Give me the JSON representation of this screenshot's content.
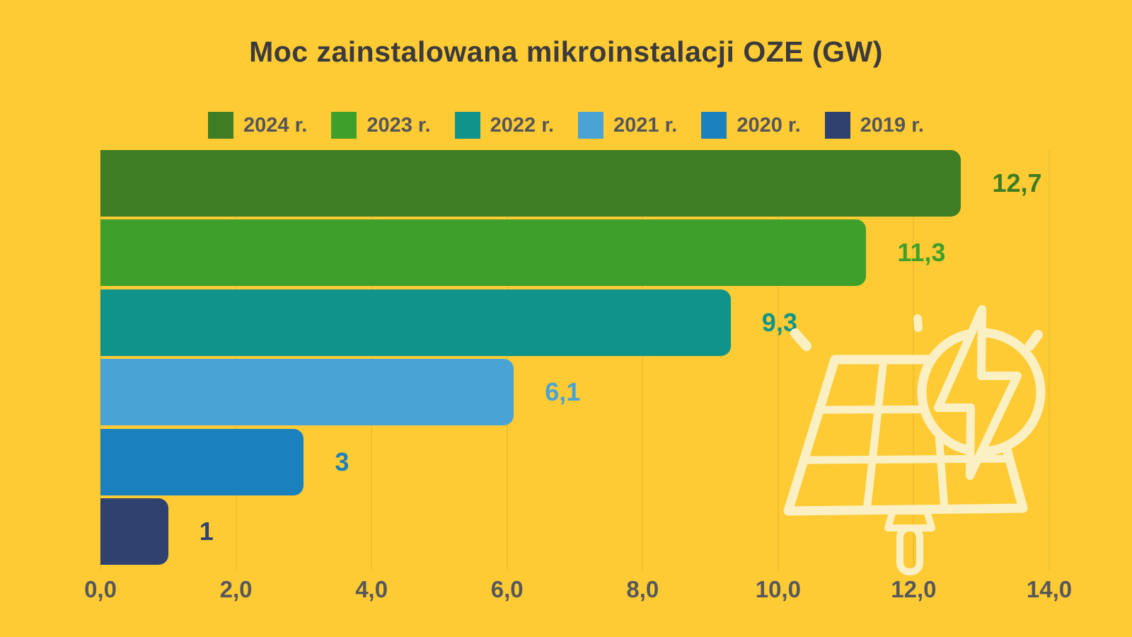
{
  "chart_data": {
    "type": "bar",
    "orientation": "horizontal",
    "title": "Moc zainstalowana mikroinstalacji OZE (GW)",
    "unit": "GW",
    "series": [
      {
        "name": "2024 r.",
        "value": 12.7,
        "value_label": "12,7",
        "color": "#3E7D23"
      },
      {
        "name": "2023 r.",
        "value": 11.3,
        "value_label": "11,3",
        "color": "#3EA02A"
      },
      {
        "name": "2022 r.",
        "value": 9.3,
        "value_label": "9,3",
        "color": "#10948A"
      },
      {
        "name": "2021 r.",
        "value": 6.1,
        "value_label": "6,1",
        "color": "#4AA3D5"
      },
      {
        "name": "2020 r.",
        "value": 3,
        "value_label": "3",
        "color": "#1A81BD"
      },
      {
        "name": "2019 r.",
        "value": 1,
        "value_label": "1",
        "color": "#2E416F"
      }
    ],
    "xlim": [
      0,
      14
    ],
    "x_ticks": [
      "0,0",
      "2,0",
      "4,0",
      "6,0",
      "8,0",
      "10,0",
      "12,0",
      "14,0"
    ],
    "grid": true,
    "legend_position": "top",
    "value_labels_shown": true
  },
  "colors": {
    "background": "#FECB34",
    "title_text": "#3B3B3D",
    "axis_text": "#57585C",
    "legend_text": "#55565A",
    "gridline": "#E3B82F",
    "icon_cream": "#FAF0C3"
  },
  "icon": {
    "name": "solar-panel-lightning-icon",
    "description": "solar panel with lightning bolt badge and sun rays"
  }
}
